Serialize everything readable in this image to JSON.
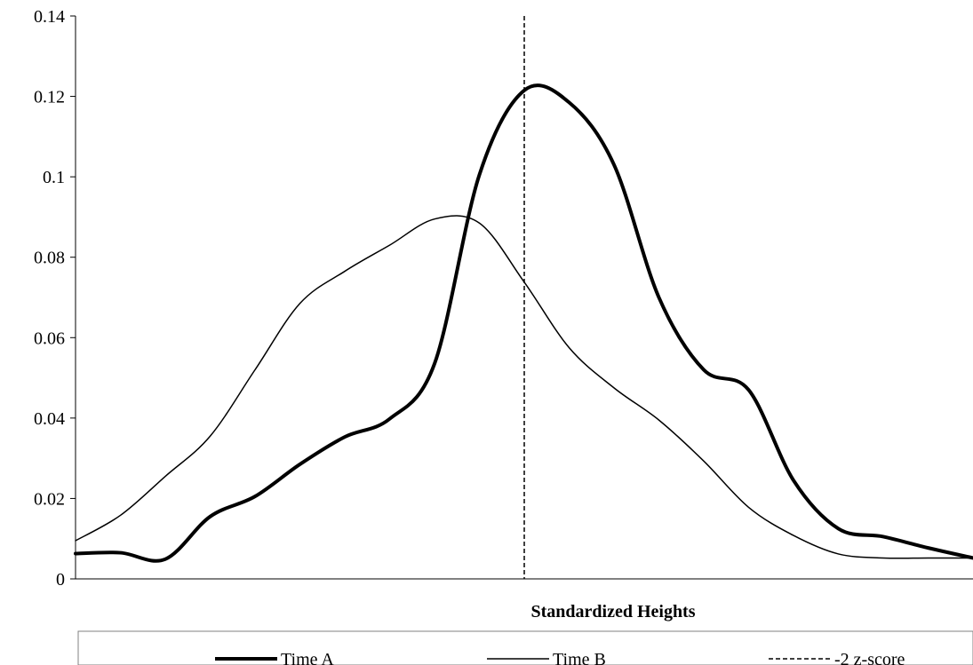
{
  "chart_data": {
    "type": "line",
    "title": "",
    "xlabel": "Standardized Heights",
    "ylabel": "",
    "ylim": [
      0,
      0.14
    ],
    "yticks": [
      "0",
      "0.02",
      "0.04",
      "0.06",
      "0.08",
      "0.1",
      "0.12",
      "0.14"
    ],
    "grid": false,
    "legend_position": "bottom",
    "x": [
      0,
      0.05,
      0.1,
      0.15,
      0.2,
      0.25,
      0.3,
      0.35,
      0.4,
      0.45,
      0.5,
      0.55,
      0.6,
      0.65,
      0.7,
      0.75,
      0.8,
      0.85,
      0.9,
      0.95,
      1.0
    ],
    "series": [
      {
        "name": "Time A",
        "style": "thick",
        "values": [
          0.0063,
          0.0065,
          0.0049,
          0.0155,
          0.0205,
          0.0285,
          0.0353,
          0.0398,
          0.0535,
          0.1005,
          0.1215,
          0.1185,
          0.103,
          0.07,
          0.052,
          0.047,
          0.0245,
          0.0125,
          0.0105,
          0.0077,
          0.0052
        ]
      },
      {
        "name": "Time B",
        "style": "thin",
        "values": [
          0.0095,
          0.0158,
          0.0255,
          0.0355,
          0.052,
          0.0685,
          0.0765,
          0.083,
          0.0895,
          0.0885,
          0.0738,
          0.0575,
          0.0475,
          0.0395,
          0.0293,
          0.0178,
          0.0108,
          0.0062,
          0.0052,
          0.0052,
          0.0052
        ]
      }
    ],
    "reference_lines": [
      {
        "name": "-2 z-score",
        "x": 0.5,
        "style": "dashed"
      }
    ]
  },
  "legend": {
    "time_a": "Time A",
    "time_b": "Time B",
    "z_score": "-2 z-score"
  }
}
